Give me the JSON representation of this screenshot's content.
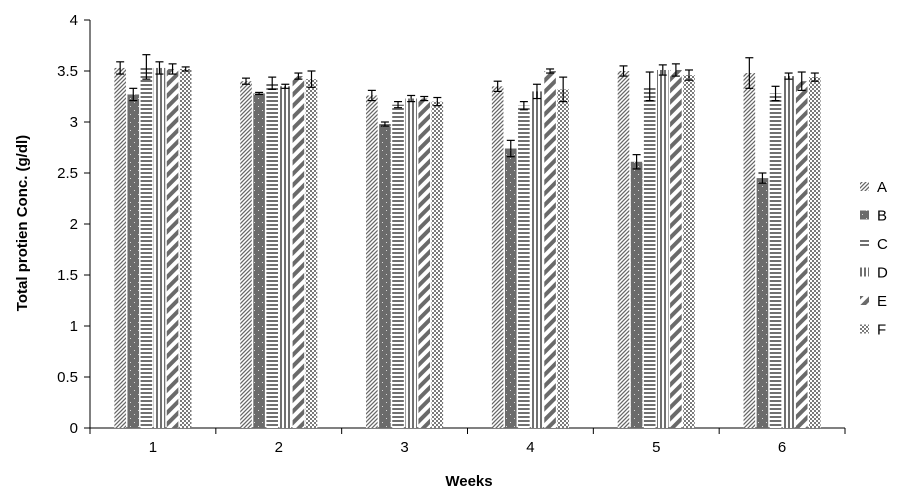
{
  "chart_data": {
    "type": "bar",
    "title": "",
    "xlabel": "Weeks",
    "ylabel": "Total protien Conc. (g/dl)",
    "categories": [
      "1",
      "2",
      "3",
      "4",
      "5",
      "6"
    ],
    "ylim": [
      0,
      4
    ],
    "yticks": [
      "0",
      "0.5",
      "1",
      "1.5",
      "2",
      "2.5",
      "3",
      "3.5",
      "4"
    ],
    "grid": false,
    "legend_position": "right",
    "series": [
      {
        "name": "A",
        "pattern": "diag-fine",
        "values": [
          3.53,
          3.4,
          3.26,
          3.35,
          3.5,
          3.48
        ],
        "errors": [
          0.06,
          0.03,
          0.05,
          0.05,
          0.05,
          0.15
        ]
      },
      {
        "name": "B",
        "pattern": "dotted-dark",
        "values": [
          3.27,
          3.28,
          2.98,
          2.74,
          2.61,
          2.45
        ],
        "errors": [
          0.06,
          0.01,
          0.02,
          0.08,
          0.07,
          0.05
        ]
      },
      {
        "name": "C",
        "pattern": "horizontal",
        "values": [
          3.54,
          3.38,
          3.17,
          3.16,
          3.35,
          3.28
        ],
        "errors": [
          0.12,
          0.06,
          0.03,
          0.04,
          0.14,
          0.07
        ]
      },
      {
        "name": "D",
        "pattern": "vertical",
        "values": [
          3.53,
          3.35,
          3.23,
          3.3,
          3.51,
          3.45
        ],
        "errors": [
          0.06,
          0.02,
          0.03,
          0.07,
          0.05,
          0.03
        ]
      },
      {
        "name": "E",
        "pattern": "diag-wide",
        "values": [
          3.52,
          3.45,
          3.23,
          3.5,
          3.51,
          3.4
        ],
        "errors": [
          0.05,
          0.03,
          0.02,
          0.02,
          0.06,
          0.09
        ]
      },
      {
        "name": "F",
        "pattern": "crosshatch",
        "values": [
          3.52,
          3.42,
          3.2,
          3.32,
          3.46,
          3.44
        ],
        "errors": [
          0.02,
          0.08,
          0.04,
          0.12,
          0.05,
          0.04
        ]
      }
    ]
  }
}
